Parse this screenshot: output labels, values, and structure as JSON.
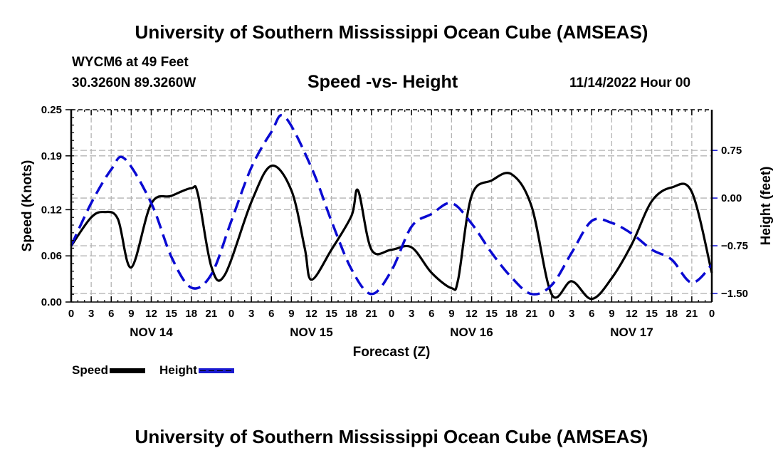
{
  "header": {
    "main_title": "University of Southern Mississippi Ocean Cube (AMSEAS)",
    "station": "WYCM6 at 49 Feet",
    "coords": "30.3260N  89.3260W",
    "chart_title": "Speed -vs- Height",
    "run_time": "11/14/2022 Hour 00"
  },
  "footer": {
    "title": "University of Southern Mississippi Ocean Cube (AMSEAS)"
  },
  "legend": {
    "speed_label": "Speed",
    "height_label": "Height"
  },
  "colors": {
    "speed": "#000000",
    "height": "#0a0ad2",
    "grid": "#b4b4b4"
  },
  "chart_data": {
    "type": "line",
    "title": "Speed -vs- Height",
    "xlabel": "Forecast (Z)",
    "ylabel": "Speed (Knots)",
    "y2label": "Height (feet)",
    "xlim": [
      0,
      96
    ],
    "ylim": [
      0,
      0.25
    ],
    "y2lim": [
      -1.635,
      1.39
    ],
    "grid": true,
    "legend_position": "bottom-left",
    "x_tick_labels": [
      "0",
      "3",
      "6",
      "9",
      "12",
      "15",
      "18",
      "21",
      "0",
      "3",
      "6",
      "9",
      "12",
      "15",
      "18",
      "21",
      "0",
      "3",
      "6",
      "9",
      "12",
      "15",
      "18",
      "21",
      "0",
      "3",
      "6",
      "9",
      "12",
      "15",
      "18",
      "21",
      "0"
    ],
    "day_labels": [
      {
        "label": "NOV 14",
        "center_hour": 12
      },
      {
        "label": "NOV 15",
        "center_hour": 36
      },
      {
        "label": "NOV 16",
        "center_hour": 60
      },
      {
        "label": "NOV 17",
        "center_hour": 84
      }
    ],
    "y_ticks": [
      {
        "v": 0.0,
        "label": "0.00"
      },
      {
        "v": 0.06,
        "label": "0.06"
      },
      {
        "v": 0.12,
        "label": "0.12"
      },
      {
        "v": 0.19,
        "label": "0.19"
      },
      {
        "v": 0.25,
        "label": "0.25"
      }
    ],
    "y2_ticks": [
      {
        "v": 0.75,
        "label": "0.75"
      },
      {
        "v": 0.0,
        "label": "0.00"
      },
      {
        "v": -0.75,
        "label": "−0.75"
      },
      {
        "v": -1.5,
        "label": "−1.50"
      }
    ],
    "series": [
      {
        "name": "Speed",
        "axis": "left",
        "style": "solid",
        "x": [
          0,
          3,
          5,
          7,
          9,
          12,
          15,
          18,
          19,
          21,
          23,
          27,
          30,
          33,
          35,
          36,
          39,
          42,
          43,
          45,
          48,
          51,
          54,
          57,
          58,
          60,
          63,
          66,
          69,
          72,
          75,
          78,
          81,
          84,
          87,
          90,
          93,
          96
        ],
        "values": [
          0.073,
          0.11,
          0.117,
          0.108,
          0.045,
          0.128,
          0.138,
          0.148,
          0.14,
          0.046,
          0.035,
          0.13,
          0.177,
          0.145,
          0.07,
          0.029,
          0.068,
          0.112,
          0.145,
          0.068,
          0.068,
          0.071,
          0.038,
          0.018,
          0.03,
          0.138,
          0.158,
          0.166,
          0.124,
          0.01,
          0.027,
          0.004,
          0.031,
          0.075,
          0.131,
          0.149,
          0.143,
          0.038
        ]
      },
      {
        "name": "Height",
        "axis": "right",
        "style": "dashed",
        "x": [
          0,
          3,
          6,
          8,
          12,
          15,
          18,
          21,
          24,
          27,
          30,
          32,
          36,
          39,
          42,
          45,
          48,
          51,
          54,
          57,
          60,
          63,
          66,
          69,
          72,
          75,
          78,
          81,
          84,
          87,
          90,
          93,
          96
        ],
        "values": [
          -0.75,
          -0.08,
          0.45,
          0.62,
          -0.08,
          -0.92,
          -1.41,
          -1.2,
          -0.36,
          0.48,
          1.04,
          1.28,
          0.48,
          -0.36,
          -1.12,
          -1.51,
          -1.14,
          -0.45,
          -0.25,
          -0.08,
          -0.4,
          -0.86,
          -1.25,
          -1.51,
          -1.37,
          -0.86,
          -0.36,
          -0.39,
          -0.56,
          -0.81,
          -0.97,
          -1.33,
          -1.05
        ]
      }
    ]
  }
}
